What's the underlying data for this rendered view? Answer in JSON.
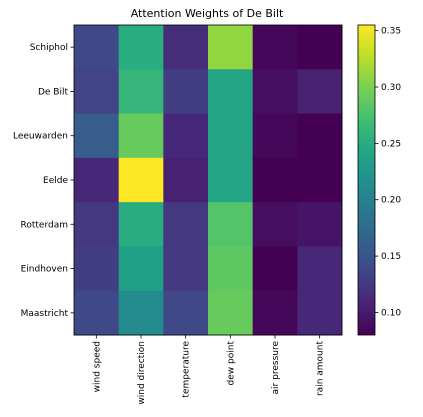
{
  "chart_data": {
    "type": "heatmap",
    "title": "Attention Weights of De Bilt",
    "rows": [
      "Schiphol",
      "De Bilt",
      "Leeuwarden",
      "Eelde",
      "Rotterdam",
      "Eindhoven",
      "Maastricht"
    ],
    "columns": [
      "wind speed",
      "wind direction",
      "temperature",
      "dew point",
      "air pressure",
      "rain amount"
    ],
    "values": [
      [
        0.14,
        0.25,
        0.115,
        0.31,
        0.085,
        0.08
      ],
      [
        0.135,
        0.26,
        0.13,
        0.24,
        0.09,
        0.105
      ],
      [
        0.16,
        0.29,
        0.11,
        0.24,
        0.085,
        0.08
      ],
      [
        0.11,
        0.355,
        0.105,
        0.24,
        0.08,
        0.08
      ],
      [
        0.125,
        0.25,
        0.125,
        0.28,
        0.09,
        0.095
      ],
      [
        0.13,
        0.235,
        0.125,
        0.285,
        0.08,
        0.11
      ],
      [
        0.14,
        0.21,
        0.14,
        0.29,
        0.085,
        0.11
      ]
    ],
    "colormap": "viridis",
    "vmin": 0.08,
    "vmax": 0.355,
    "colorbar_ticks": [
      "0.10",
      "0.15",
      "0.20",
      "0.25",
      "0.30",
      "0.35"
    ]
  }
}
